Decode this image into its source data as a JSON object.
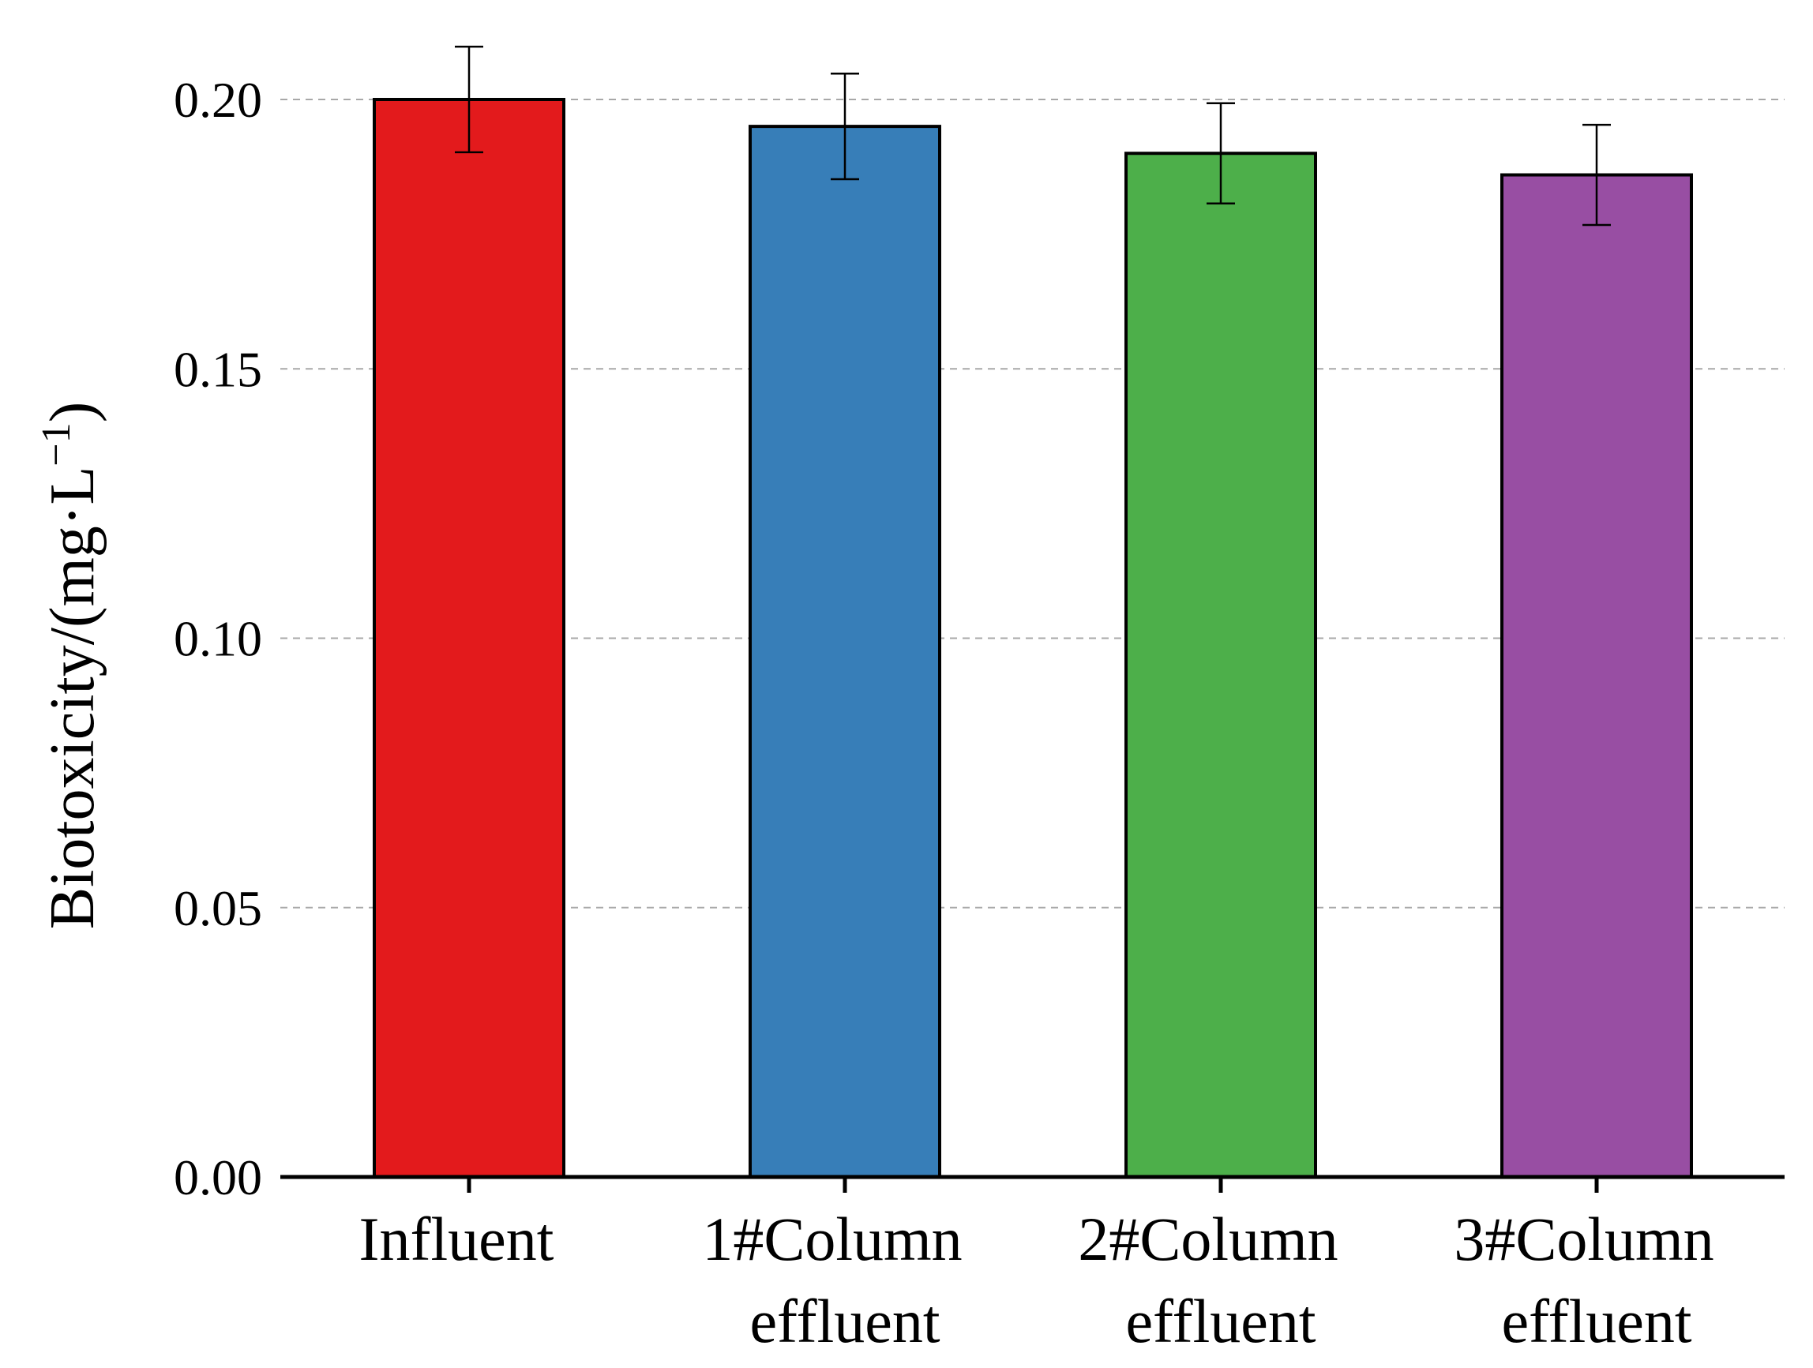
{
  "chart_data": {
    "type": "bar",
    "title": "",
    "xlabel": "",
    "ylabel": "Biotoxicity/(mg·L",
    "ylabel_superscript": "−1",
    "ylabel_close": ")",
    "ylim": [
      0,
      0.2
    ],
    "yticks": [
      "0.00",
      "0.05",
      "0.10",
      "0.15",
      "0.20"
    ],
    "ytick_values": [
      0.0,
      0.05,
      0.1,
      0.15,
      0.2
    ],
    "grid": true,
    "categories": [
      [
        "Influent"
      ],
      [
        "1#Column",
        "effluent"
      ],
      [
        "2#Column",
        "effluent"
      ],
      [
        "3#Column",
        "effluent"
      ]
    ],
    "values": [
      0.2,
      0.195,
      0.19,
      0.186
    ],
    "errors": [
      0.0098,
      0.0098,
      0.0093,
      0.0093
    ],
    "colors": [
      "#e31a1c",
      "#377eb8",
      "#4daf4a",
      "#984ea3"
    ]
  }
}
